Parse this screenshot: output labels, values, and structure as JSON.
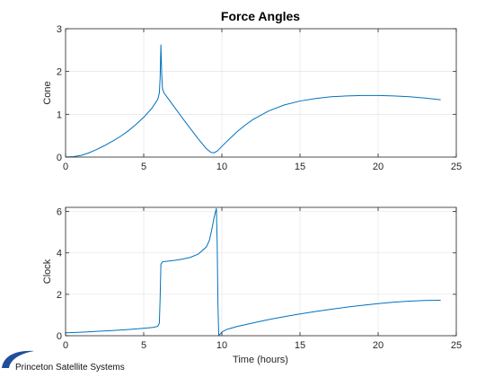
{
  "figure": {
    "logo_text": "Princeton Satellite Systems",
    "logo_color": "#1f4e9c"
  },
  "chart_data": [
    {
      "type": "line",
      "title": "Force Angles",
      "xlabel": "",
      "ylabel": "Cone",
      "xlim": [
        0,
        25
      ],
      "ylim": [
        0,
        3
      ],
      "xticks": [
        0,
        5,
        10,
        15,
        20,
        25
      ],
      "yticks": [
        0,
        1,
        2,
        3
      ],
      "grid": true,
      "color": "#0072bd",
      "x": [
        0,
        0.5,
        1,
        1.5,
        2,
        2.5,
        3,
        3.5,
        4,
        4.5,
        5,
        5.5,
        5.9,
        6.0,
        6.05,
        6.1,
        6.15,
        6.2,
        6.3,
        6.5,
        7,
        7.5,
        8,
        8.5,
        9,
        9.3,
        9.5,
        9.7,
        10,
        10.5,
        11,
        11.5,
        12,
        13,
        14,
        15,
        16,
        17,
        18,
        19,
        20,
        21,
        22,
        23,
        24
      ],
      "y": [
        0,
        0.01,
        0.04,
        0.1,
        0.18,
        0.27,
        0.37,
        0.48,
        0.61,
        0.76,
        0.93,
        1.13,
        1.35,
        1.5,
        1.85,
        2.63,
        1.95,
        1.6,
        1.5,
        1.4,
        1.15,
        0.9,
        0.66,
        0.42,
        0.2,
        0.11,
        0.1,
        0.14,
        0.25,
        0.43,
        0.6,
        0.75,
        0.88,
        1.08,
        1.22,
        1.31,
        1.37,
        1.41,
        1.43,
        1.44,
        1.44,
        1.43,
        1.41,
        1.38,
        1.34
      ]
    },
    {
      "type": "line",
      "title": "",
      "xlabel": "Time (hours)",
      "ylabel": "Clock",
      "xlim": [
        0,
        25
      ],
      "ylim": [
        0,
        6.2
      ],
      "xticks": [
        0,
        5,
        10,
        15,
        20,
        25
      ],
      "yticks": [
        0,
        2,
        4,
        6
      ],
      "grid": true,
      "color": "#0072bd",
      "x": [
        0,
        1,
        2,
        3,
        4,
        5,
        5.6,
        5.9,
        6.0,
        6.05,
        6.1,
        6.2,
        6.5,
        7,
        7.5,
        8,
        8.5,
        9,
        9.2,
        9.35,
        9.5,
        9.6,
        9.65,
        9.7,
        9.75,
        9.8,
        9.9,
        10,
        10.3,
        11,
        12,
        13,
        14,
        15,
        16,
        17,
        18,
        19,
        20,
        21,
        22,
        23,
        24
      ],
      "y": [
        0.14,
        0.17,
        0.21,
        0.25,
        0.3,
        0.36,
        0.4,
        0.45,
        0.6,
        1.8,
        3.45,
        3.57,
        3.6,
        3.64,
        3.7,
        3.79,
        3.95,
        4.28,
        4.6,
        5.1,
        5.7,
        6.0,
        6.15,
        4.5,
        1.5,
        0.02,
        0.08,
        0.18,
        0.3,
        0.45,
        0.62,
        0.78,
        0.92,
        1.05,
        1.17,
        1.28,
        1.38,
        1.47,
        1.55,
        1.62,
        1.67,
        1.7,
        1.71
      ]
    }
  ]
}
